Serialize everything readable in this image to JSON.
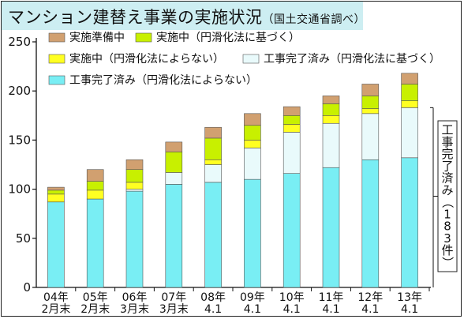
{
  "title": "マンション建替え事業の実施状況",
  "subtitle": "（国土交通省調べ）",
  "chart_data": {
    "type": "bar",
    "stacked": true,
    "categories": [
      [
        "04年",
        "2月末"
      ],
      [
        "05年",
        "2月末"
      ],
      [
        "06年",
        "3月末"
      ],
      [
        "07年",
        "3月末"
      ],
      [
        "08年",
        "4.1"
      ],
      [
        "09年",
        "4.1"
      ],
      [
        "10年",
        "4.1"
      ],
      [
        "11年",
        "4.1"
      ],
      [
        "12年",
        "4.1"
      ],
      [
        "13年",
        "4.1"
      ]
    ],
    "series": [
      {
        "name": "工事完了済み（円滑化法によらない）",
        "color": "#79eef4",
        "values": [
          87,
          90,
          98,
          105,
          107,
          110,
          116,
          122,
          130,
          132
        ]
      },
      {
        "name": "工事完了済み（円滑化法に基づく）",
        "color": "#e9fafb",
        "values": [
          0,
          0,
          2,
          12,
          18,
          32,
          42,
          45,
          47,
          51
        ]
      },
      {
        "name": "実施中（円滑化法によらない）",
        "color": "#ffff22",
        "values": [
          8,
          9,
          7,
          0,
          5,
          8,
          8,
          8,
          5,
          7
        ]
      },
      {
        "name": "実施中（円滑化法に基づく）",
        "color": "#c8f000",
        "values": [
          4,
          9,
          13,
          21,
          22,
          15,
          9,
          12,
          13,
          17
        ]
      },
      {
        "name": "実施準備中",
        "color": "#d1a070",
        "values": [
          3,
          12,
          10,
          10,
          11,
          12,
          9,
          8,
          12,
          11
        ]
      }
    ],
    "legend_order": [
      4,
      3,
      2,
      1,
      0
    ],
    "yticks": [
      0,
      50,
      100,
      150,
      200,
      250
    ],
    "ylim": [
      0,
      250
    ],
    "annotation": {
      "label": "工事完了済み（183件）",
      "range": [
        0,
        183
      ]
    }
  }
}
